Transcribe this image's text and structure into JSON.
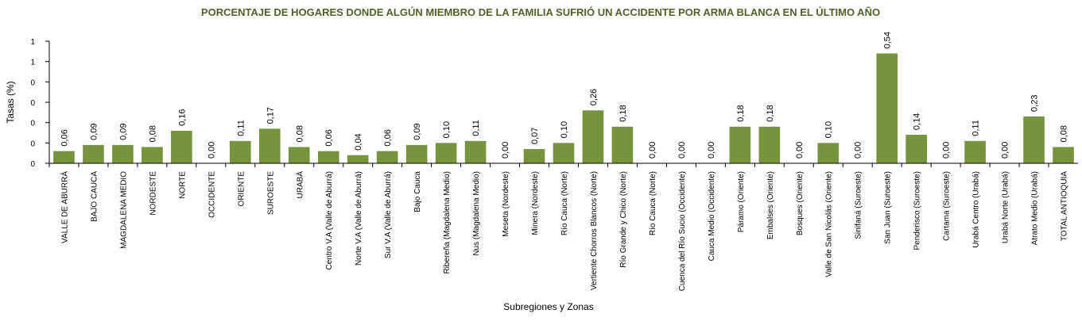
{
  "chart_data": {
    "type": "bar",
    "title": "PORCENTAJE DE HOGARES DONDE ALGÚN MIEMBRO DE LA FAMILIA SUFRIÓ UN ACCIDENTE POR  ARMA BLANCA EN EL ÚLTIMO AÑO",
    "y_label": "Tasas (%)",
    "x_label": "Subregiones y Zonas",
    "categories": [
      "VALLE DE ABURRÁ",
      "BAJO CAUCA",
      "MAGDALENA MEDIO",
      "NORDESTE",
      "NORTE",
      "OCCIDENTE",
      "ORIENTE",
      "SUROESTE",
      "URABÁ",
      "Centro V.A (Valle de Aburrá)",
      "Norte V.A (Valle de Aburrá)",
      "Sur V.A (Valle de Aburrá)",
      "Bajo Cauca",
      "Ribereña  (Magdalena Medio)",
      "Nus  (Magdalena Medio)",
      "Meseta  (Nordeste)",
      "Minera  (Nordeste)",
      "Río Cauca  (Norte)",
      "Vertiente Chorros Blancos (Norte)",
      "Río Grande y Chico  (Norte)",
      "Río Cauca (Norte)",
      "Cuenca del Río Sucio (Occidente)",
      "Cauca Medio  (Occidente)",
      "Páramo  (Oriente)",
      "Embalses  (Oriente)",
      "Bosques  (Oriente)",
      "Valle de San Nicolás (Oriente)",
      "Sinifaná  (Suroeste)",
      "San Juan  (Suroeste)",
      "Penderisco  (Suroeste)",
      "Cartama  (Suroeste)",
      "Urabá Centro  (Urabá)",
      "Urabá Norte  (Urabá)",
      "Atrato Medio  (Urabá)",
      "TOTAL ANTIOQUIA"
    ],
    "values": [
      0.06,
      0.09,
      0.09,
      0.08,
      0.16,
      0.0,
      0.11,
      0.17,
      0.08,
      0.06,
      0.04,
      0.06,
      0.09,
      0.1,
      0.11,
      0.0,
      0.07,
      0.1,
      0.26,
      0.18,
      0.0,
      0.0,
      0.0,
      0.18,
      0.18,
      0.0,
      0.1,
      0.0,
      0.54,
      0.14,
      0.0,
      0.11,
      0.0,
      0.23,
      0.08
    ],
    "value_labels": [
      "0,06",
      "0,09",
      "0,09",
      "0,08",
      "0,16",
      "0,00",
      "0,11",
      "0,17",
      "0,08",
      "0,06",
      "0,04",
      "0,06",
      "0,09",
      "0,10",
      "0,11",
      "0,00",
      "0,07",
      "0,10",
      "0,26",
      "0,18",
      "0,00",
      "0,00",
      "0,00",
      "0,18",
      "0,18",
      "0,00",
      "0,10",
      "0,00",
      "0,54",
      "0,14",
      "0,00",
      "0,11",
      "0,00",
      "0,23",
      "0,08"
    ],
    "color": "#77933c",
    "ylim": [
      0,
      0.6
    ],
    "yticks": [
      {
        "value": 0,
        "label": "0"
      },
      {
        "value": 0.1,
        "label": "0"
      },
      {
        "value": 0.2,
        "label": "0"
      },
      {
        "value": 0.3,
        "label": "0"
      },
      {
        "value": 0.4,
        "label": "0"
      },
      {
        "value": 0.5,
        "label": "1"
      },
      {
        "value": 0.6,
        "label": "1"
      }
    ],
    "grid": false
  }
}
